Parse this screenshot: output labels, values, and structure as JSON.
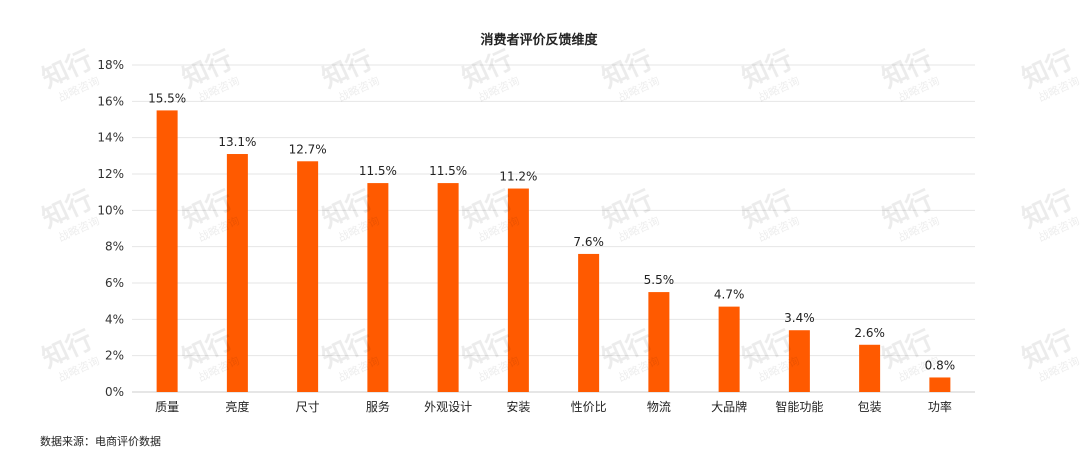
{
  "watermark": {
    "brand": "知行",
    "sub": "战略咨询"
  },
  "source": "数据来源：电商评价数据",
  "chart_data": {
    "type": "bar",
    "title": "消费者评价反馈维度",
    "categories": [
      "质量",
      "亮度",
      "尺寸",
      "服务",
      "外观设计",
      "安装",
      "性价比",
      "物流",
      "大品牌",
      "智能功能",
      "包装",
      "功率"
    ],
    "values": [
      15.5,
      13.1,
      12.7,
      11.5,
      11.5,
      11.2,
      7.6,
      5.5,
      4.7,
      3.4,
      2.6,
      0.8
    ],
    "value_labels": [
      "15.5%",
      "13.1%",
      "12.7%",
      "11.5%",
      "11.5%",
      "11.2%",
      "7.6%",
      "5.5%",
      "4.7%",
      "3.4%",
      "2.6%",
      "0.8%"
    ],
    "yticks": [
      0,
      2,
      4,
      6,
      8,
      10,
      12,
      14,
      16,
      18
    ],
    "ytick_labels": [
      "0%",
      "2%",
      "4%",
      "6%",
      "8%",
      "10%",
      "12%",
      "14%",
      "16%",
      "18%"
    ],
    "ylim": [
      0,
      18
    ],
    "grid": true,
    "bar_color": "#FF5A00",
    "grid_color": "#e6e6e6"
  }
}
